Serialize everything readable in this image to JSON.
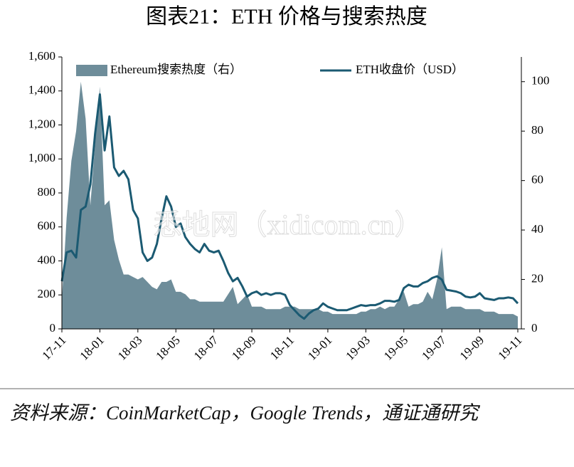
{
  "chart_data": {
    "type": "area-line",
    "title": "图表21：ETH 价格与搜索热度",
    "watermark": "悉地网（xidicom.cn）",
    "source": "资料来源：CoinMarketCap，Google Trends，通证通研究",
    "categories": [
      "17-11",
      null,
      null,
      null,
      null,
      null,
      null,
      null,
      "18-01",
      null,
      null,
      null,
      null,
      null,
      null,
      null,
      "18-03",
      null,
      null,
      null,
      null,
      null,
      null,
      null,
      "18-05",
      null,
      null,
      null,
      null,
      null,
      null,
      null,
      "18-07",
      null,
      null,
      null,
      null,
      null,
      null,
      null,
      "18-09",
      null,
      null,
      null,
      null,
      null,
      null,
      null,
      "18-11",
      null,
      null,
      null,
      null,
      null,
      null,
      null,
      "19-01",
      null,
      null,
      null,
      null,
      null,
      null,
      null,
      "19-03",
      null,
      null,
      null,
      null,
      null,
      null,
      null,
      "19-05",
      null,
      null,
      null,
      null,
      null,
      null,
      null,
      "19-07",
      null,
      null,
      null,
      null,
      null,
      null,
      null,
      "19-09",
      null,
      null,
      null,
      null,
      null,
      null,
      null,
      "19-11"
    ],
    "series": [
      {
        "name": "Ethereum搜索热度（右）",
        "kind": "area",
        "axis": "y2",
        "color": "#6e8d9a",
        "values": [
          12,
          45,
          68,
          80,
          100,
          85,
          50,
          75,
          98,
          50,
          52,
          36,
          28,
          22,
          22,
          21,
          20,
          21,
          19,
          17,
          16,
          19,
          19,
          20,
          15,
          15,
          14,
          12,
          12,
          11,
          11,
          11,
          11,
          11,
          11,
          14,
          17,
          10,
          12,
          14,
          9,
          9,
          9,
          8,
          8,
          8,
          8,
          9,
          9,
          9,
          8,
          8,
          8,
          8,
          8,
          7,
          7,
          6,
          6,
          6,
          6,
          6,
          6,
          7,
          7,
          8,
          8,
          9,
          8,
          9,
          9,
          12,
          15,
          9,
          10,
          10,
          11,
          15,
          12,
          20,
          33,
          8,
          9,
          9,
          9,
          8,
          8,
          8,
          8,
          7,
          7,
          7,
          6,
          6,
          6,
          6,
          5
        ]
      },
      {
        "name": "ETH收盘价（USD）",
        "kind": "line",
        "axis": "y",
        "color": "#1b5a72",
        "values": [
          280,
          450,
          460,
          420,
          700,
          720,
          850,
          1150,
          1380,
          1050,
          1250,
          950,
          900,
          930,
          880,
          700,
          650,
          450,
          400,
          420,
          500,
          650,
          780,
          720,
          600,
          620,
          540,
          500,
          470,
          450,
          500,
          460,
          450,
          460,
          400,
          330,
          280,
          300,
          250,
          190,
          210,
          220,
          200,
          210,
          200,
          210,
          210,
          200,
          140,
          110,
          80,
          60,
          90,
          110,
          120,
          150,
          130,
          120,
          110,
          110,
          110,
          120,
          130,
          140,
          135,
          140,
          140,
          150,
          165,
          165,
          160,
          170,
          240,
          260,
          250,
          250,
          270,
          280,
          300,
          310,
          290,
          230,
          225,
          220,
          210,
          190,
          185,
          190,
          210,
          180,
          175,
          170,
          180,
          180,
          185,
          180,
          150
        ]
      }
    ],
    "ylim": [
      0,
      1600
    ],
    "yticks": [
      0,
      200,
      400,
      600,
      800,
      {
        "value": 1000,
        "label": "1,000"
      },
      {
        "value": 1200,
        "label": "1,200"
      },
      {
        "value": 1400,
        "label": "1,400"
      },
      {
        "value": 1600,
        "label": "1,600"
      }
    ],
    "y2lim": [
      0,
      110
    ],
    "y2ticks": [
      0,
      20,
      40,
      60,
      80,
      100
    ]
  }
}
